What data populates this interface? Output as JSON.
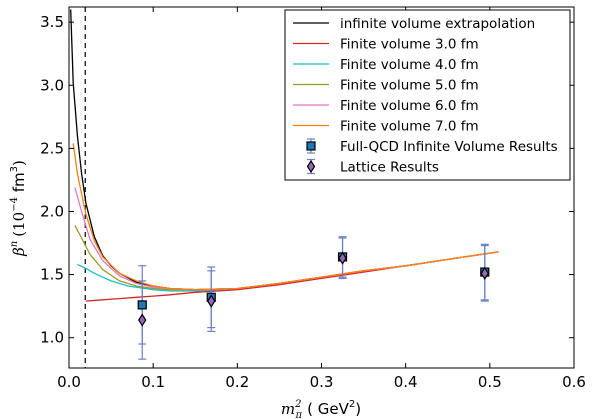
{
  "chart_data": {
    "type": "line",
    "title": "",
    "xlabel": {
      "base": "m",
      "sub": "π",
      "sup": "2",
      "units": "( GeV",
      "units_sup": "2",
      "close": ")"
    },
    "ylabel": {
      "base": "β",
      "sup": "n",
      "units": "(10",
      "units_sup": "−4",
      "units_tail": " fm",
      "units_sup2": "3",
      "close": ")"
    },
    "xlim": [
      0.0,
      0.6
    ],
    "ylim": [
      0.76,
      3.62
    ],
    "xticks": [
      0.0,
      0.1,
      0.2,
      0.3,
      0.4,
      0.5,
      0.6
    ],
    "xtick_labels": [
      "0.0",
      "0.1",
      "0.2",
      "0.3",
      "0.4",
      "0.5",
      "0.6"
    ],
    "yticks": [
      1.0,
      1.5,
      2.0,
      2.5,
      3.0,
      3.5
    ],
    "ytick_labels": [
      "1.0",
      "1.5",
      "2.0",
      "2.5",
      "3.0",
      "3.5"
    ],
    "grid": false,
    "legend_position": "top-right",
    "vline": {
      "x": 0.0193,
      "style": "dashed",
      "color": "#000000"
    },
    "series": [
      {
        "name": "infinite volume extrapolation",
        "color": "#000000",
        "kind": "line",
        "x": [
          0.002,
          0.005,
          0.01,
          0.015,
          0.02,
          0.03,
          0.04,
          0.05,
          0.06,
          0.08,
          0.1,
          0.12,
          0.15,
          0.2,
          0.25,
          0.3,
          0.35,
          0.4,
          0.45,
          0.51
        ],
        "y": [
          3.6,
          3.02,
          2.6,
          2.3,
          2.07,
          1.8,
          1.65,
          1.57,
          1.51,
          1.44,
          1.41,
          1.39,
          1.38,
          1.39,
          1.43,
          1.48,
          1.53,
          1.57,
          1.62,
          1.68
        ]
      },
      {
        "name": "Finite volume 3.0 fm",
        "color": "#d62728",
        "kind": "line",
        "x": [
          0.02,
          0.04,
          0.06,
          0.08,
          0.1,
          0.12,
          0.15,
          0.2,
          0.25,
          0.3,
          0.35,
          0.4,
          0.45,
          0.51
        ],
        "y": [
          1.29,
          1.3,
          1.31,
          1.32,
          1.33,
          1.34,
          1.36,
          1.38,
          1.42,
          1.47,
          1.52,
          1.57,
          1.62,
          1.68
        ]
      },
      {
        "name": "Finite volume 4.0 fm",
        "color": "#17becf",
        "kind": "line",
        "x": [
          0.01,
          0.02,
          0.03,
          0.05,
          0.07,
          0.1,
          0.12,
          0.15,
          0.2,
          0.25,
          0.3,
          0.35,
          0.4,
          0.45,
          0.51
        ],
        "y": [
          1.58,
          1.55,
          1.51,
          1.45,
          1.41,
          1.38,
          1.37,
          1.37,
          1.39,
          1.43,
          1.48,
          1.53,
          1.57,
          1.62,
          1.68
        ]
      },
      {
        "name": "Finite volume 5.0 fm",
        "color": "#9a9a24",
        "kind": "line",
        "x": [
          0.007,
          0.015,
          0.025,
          0.04,
          0.06,
          0.08,
          0.1,
          0.12,
          0.15,
          0.2,
          0.25,
          0.3,
          0.35,
          0.4,
          0.45,
          0.51
        ],
        "y": [
          1.89,
          1.79,
          1.66,
          1.54,
          1.45,
          1.41,
          1.39,
          1.38,
          1.38,
          1.39,
          1.43,
          1.48,
          1.53,
          1.57,
          1.62,
          1.68
        ]
      },
      {
        "name": "Finite volume 6.0 fm",
        "color": "#e377c2",
        "kind": "line",
        "x": [
          0.007,
          0.015,
          0.025,
          0.04,
          0.06,
          0.08,
          0.1,
          0.12,
          0.15,
          0.2,
          0.25,
          0.3,
          0.35,
          0.4,
          0.45,
          0.51
        ],
        "y": [
          2.19,
          2.0,
          1.78,
          1.61,
          1.49,
          1.43,
          1.4,
          1.39,
          1.38,
          1.39,
          1.43,
          1.48,
          1.53,
          1.57,
          1.62,
          1.68
        ]
      },
      {
        "name": "Finite volume 7.0 fm",
        "color": "#ff7f0e",
        "kind": "line",
        "x": [
          0.005,
          0.01,
          0.02,
          0.03,
          0.04,
          0.06,
          0.08,
          0.1,
          0.12,
          0.15,
          0.2,
          0.25,
          0.3,
          0.35,
          0.4,
          0.45,
          0.51
        ],
        "y": [
          2.54,
          2.3,
          1.98,
          1.77,
          1.64,
          1.51,
          1.45,
          1.41,
          1.39,
          1.38,
          1.39,
          1.43,
          1.48,
          1.53,
          1.57,
          1.62,
          1.68
        ]
      },
      {
        "name": "Full-QCD Infinite Volume Results",
        "color": "#1f77b4",
        "edge": "#000000",
        "marker": "square",
        "kind": "errorbar",
        "points": [
          {
            "x": 0.087,
            "y": 1.26,
            "yerr": 0.31
          },
          {
            "x": 0.169,
            "y": 1.32,
            "yerr": 0.24
          },
          {
            "x": 0.325,
            "y": 1.64,
            "yerr": 0.16
          },
          {
            "x": 0.494,
            "y": 1.52,
            "yerr": 0.22
          }
        ]
      },
      {
        "name": "Lattice Results",
        "color": "#9467bd",
        "edge": "#000000",
        "marker": "diamond",
        "kind": "errorbar",
        "points": [
          {
            "x": 0.087,
            "y": 1.14,
            "yerr": 0.31
          },
          {
            "x": 0.169,
            "y": 1.29,
            "yerr": 0.24
          },
          {
            "x": 0.325,
            "y": 1.63,
            "yerr": 0.16
          },
          {
            "x": 0.494,
            "y": 1.51,
            "yerr": 0.22
          }
        ]
      }
    ],
    "errorbar_color": "#6a80c8"
  }
}
